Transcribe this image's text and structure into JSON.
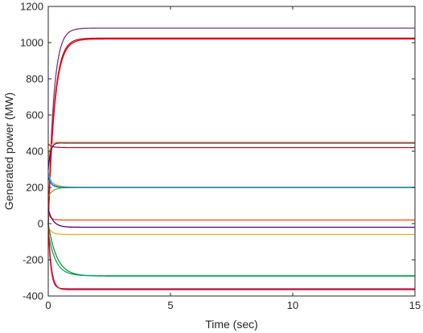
{
  "chart_data": {
    "type": "line",
    "title": "",
    "xlabel": "Time (sec)",
    "ylabel": "Generated power (MW)",
    "xlim": [
      0,
      15
    ],
    "ylim": [
      -400,
      1200
    ],
    "xticks": [
      0,
      5,
      10,
      15
    ],
    "yticks": [
      -400,
      -200,
      0,
      200,
      400,
      600,
      800,
      1000,
      1200
    ],
    "grid": false,
    "legend": "none",
    "series": [
      {
        "color": "#7E2F8E",
        "start": 0,
        "final": 1080,
        "tau": 0.22,
        "overshoot": 0
      },
      {
        "color": "#A2142F",
        "start": 0,
        "final": 1025,
        "tau": 0.25,
        "overshoot": 0
      },
      {
        "color": "#FF0000",
        "start": 0,
        "final": 1020,
        "tau": 0.26,
        "overshoot": 0
      },
      {
        "color": "#4B0082",
        "start": 300,
        "final": 445,
        "tau": 0.12,
        "overshoot": 15
      },
      {
        "color": "#EDB120",
        "start": 350,
        "final": 450,
        "tau": 0.1,
        "overshoot": 10
      },
      {
        "color": "#A2142F",
        "start": 440,
        "final": 420,
        "tau": 0.15,
        "overshoot": 0
      },
      {
        "color": "#FF8C00",
        "start": 250,
        "final": 200,
        "tau": 0.25,
        "overshoot": 0
      },
      {
        "color": "#4DBEEE",
        "start": 280,
        "final": 200,
        "tau": 0.15,
        "overshoot": 0
      },
      {
        "color": "#77AC30",
        "start": 150,
        "final": 200,
        "tau": 0.2,
        "overshoot": 0
      },
      {
        "color": "#0072BD",
        "start": 260,
        "final": 200,
        "tau": 0.12,
        "overshoot": 0
      },
      {
        "color": "#FF4500",
        "start": 60,
        "final": 20,
        "tau": 0.1,
        "overshoot": 0
      },
      {
        "color": "#4B0082",
        "start": 80,
        "final": -20,
        "tau": 0.2,
        "overshoot": 0
      },
      {
        "color": "#EDB120",
        "start": -20,
        "final": -60,
        "tau": 0.15,
        "overshoot": 0
      },
      {
        "color": "#228B22",
        "start": 0,
        "final": -290,
        "tau": 0.35,
        "overshoot": 0
      },
      {
        "color": "#00A86B",
        "start": -50,
        "final": -288,
        "tau": 0.3,
        "overshoot": 0
      },
      {
        "color": "#7E2F8E",
        "start": 0,
        "final": -360,
        "tau": 0.1,
        "overshoot": 0
      },
      {
        "color": "#FF0000",
        "start": 0,
        "final": -365,
        "tau": 0.12,
        "overshoot": 0
      }
    ]
  }
}
